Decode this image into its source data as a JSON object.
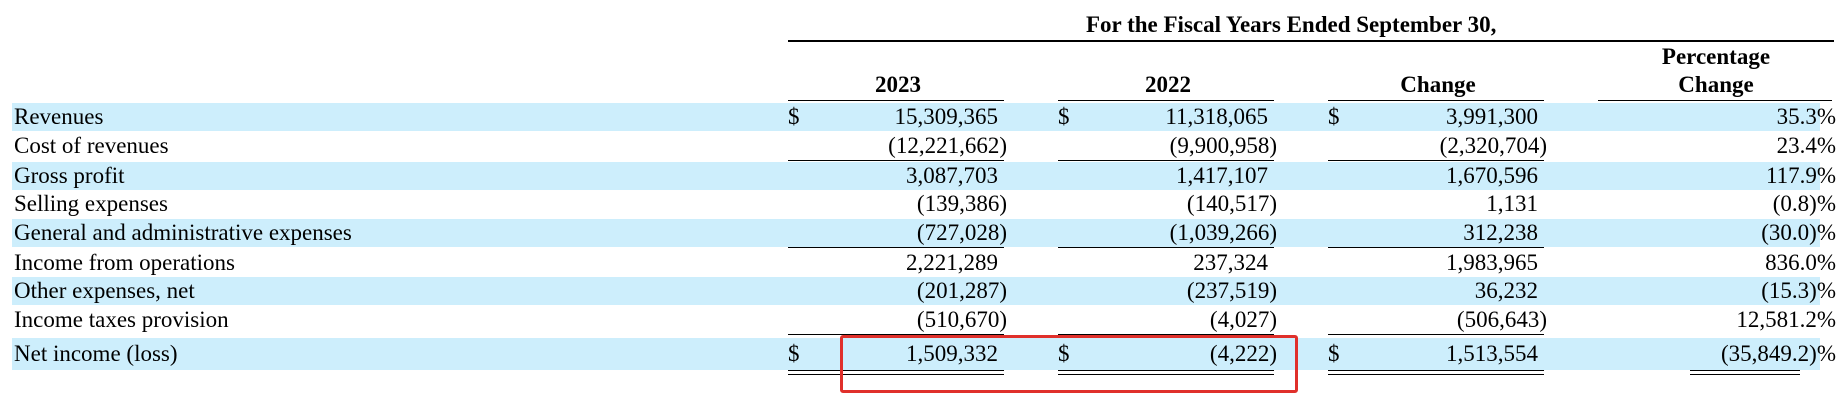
{
  "header": {
    "title": "For the Fiscal Years Ended September 30,",
    "columns": [
      "2023",
      "2022",
      "Change",
      "Percentage\nChange"
    ],
    "pct_line1": "Percentage",
    "pct_line2": "Change"
  },
  "currency_symbol": "$",
  "rows": [
    {
      "label": "Revenues",
      "v2023": "15,309,365",
      "v2022": "11,318,065",
      "change": "3,991,300",
      "pct": "35.3%"
    },
    {
      "label": "Cost of revenues",
      "v2023": "(12,221,662)",
      "v2022": "(9,900,958)",
      "change": "(2,320,704)",
      "pct": "23.4%"
    },
    {
      "label": "Gross profit",
      "v2023": "3,087,703",
      "v2022": "1,417,107",
      "change": "1,670,596",
      "pct": "117.9%"
    },
    {
      "label": "Selling expenses",
      "v2023": "(139,386)",
      "v2022": "(140,517)",
      "change": "1,131",
      "pct": "(0.8)%"
    },
    {
      "label": "General and administrative expenses",
      "v2023": "(727,028)",
      "v2022": "(1,039,266)",
      "change": "312,238",
      "pct": "(30.0)%"
    },
    {
      "label": "Income from operations",
      "v2023": "2,221,289",
      "v2022": "237,324",
      "change": "1,983,965",
      "pct": "836.0%"
    },
    {
      "label": "Other expenses, net",
      "v2023": "(201,287)",
      "v2022": "(237,519)",
      "change": "36,232",
      "pct": "(15.3)%"
    },
    {
      "label": "Income taxes provision",
      "v2023": "(510,670)",
      "v2022": "(4,027)",
      "change": "(506,643)",
      "pct": "12,581.2%"
    },
    {
      "label": "Net income (loss)",
      "v2023": "1,509,332",
      "v2022": "(4,222)",
      "change": "1,513,554",
      "pct": "(35,849.2)%"
    }
  ],
  "colors": {
    "row_shade": "#cdeefc",
    "highlight": "#e0302b"
  }
}
